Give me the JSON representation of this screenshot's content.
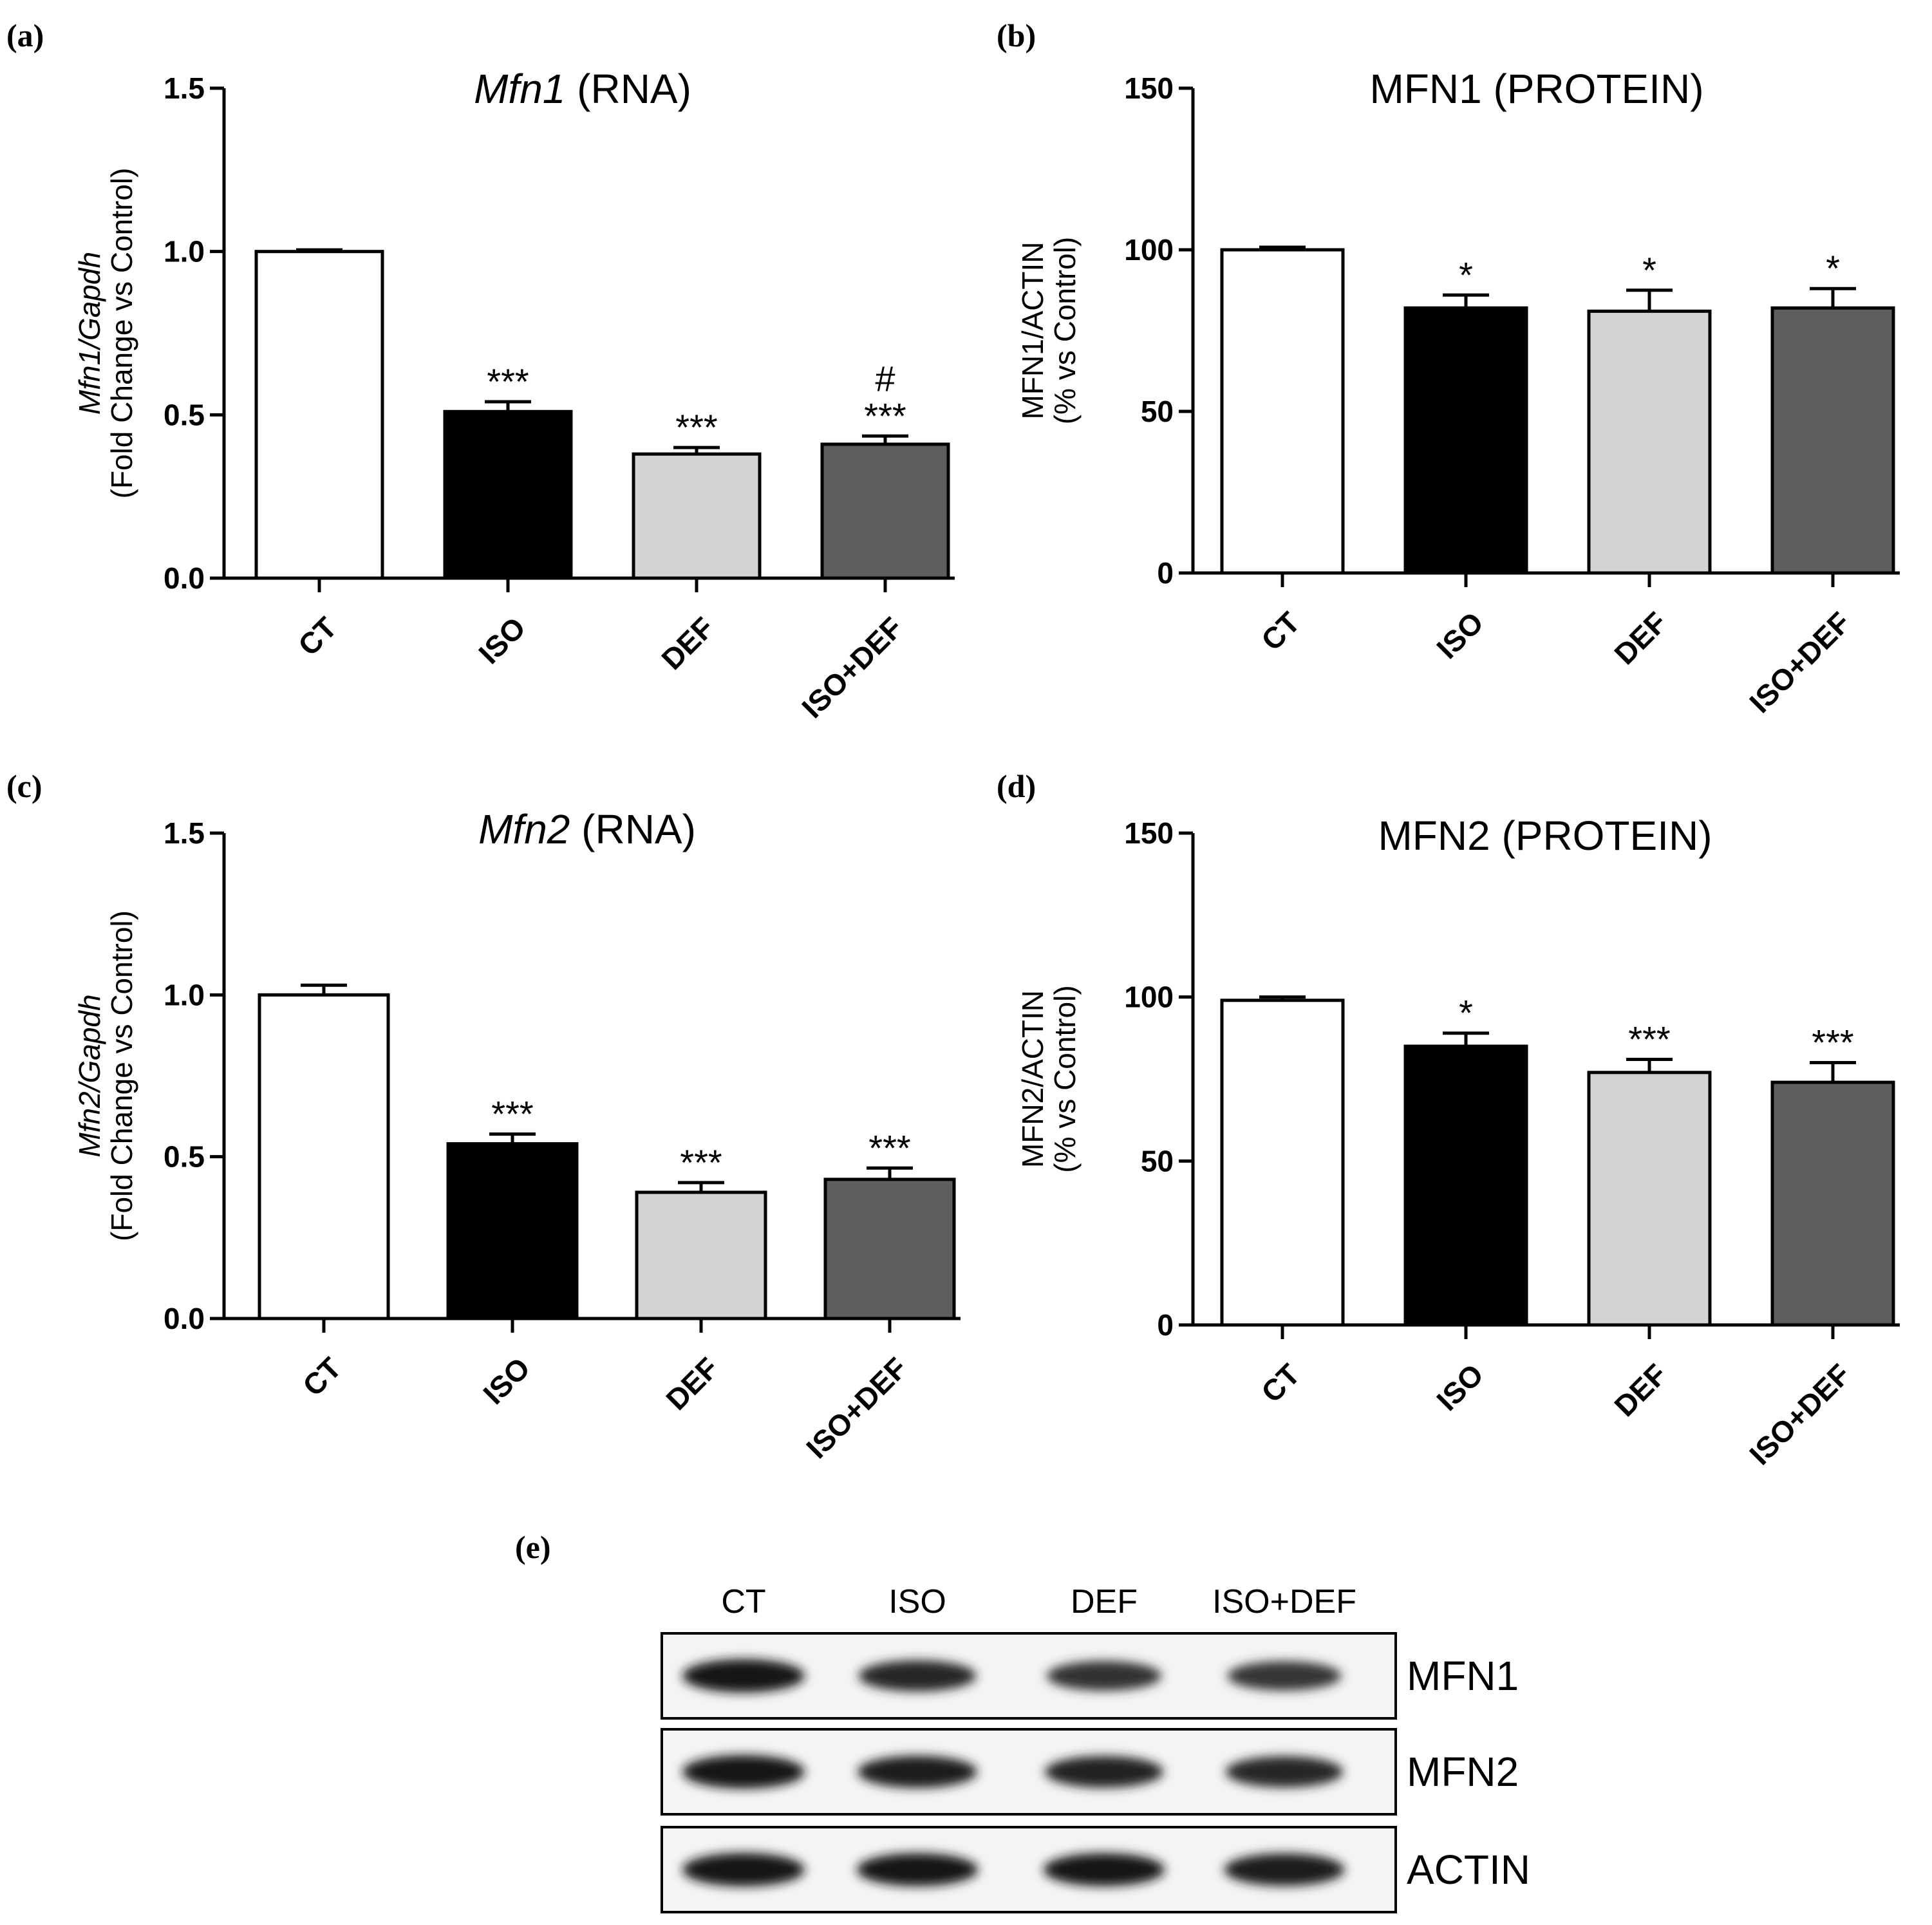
{
  "colors": {
    "CT": "#ffffff",
    "ISO": "#000000",
    "DEF": "#d3d3d3",
    "ISO+DEF": "#5e5e5e"
  },
  "chart_data": [
    {
      "id": "a",
      "type": "bar",
      "panel": "(a)",
      "title_italic": "Mfn1",
      "title_rest": " (RNA)",
      "ylabel_italic": "Mfn1/Gapdh",
      "ylabel_line2": "(Fold Change vs Control)",
      "categories": [
        "CT",
        "ISO",
        "DEF",
        "ISO+DEF"
      ],
      "values": [
        1.0,
        0.51,
        0.38,
        0.41
      ],
      "errors": [
        0.005,
        0.03,
        0.02,
        0.025
      ],
      "significance": [
        "",
        "***",
        "***",
        "***"
      ],
      "significance_extra": [
        "",
        "",
        "",
        "#"
      ],
      "ylim": [
        0,
        1.5
      ],
      "yticks": [
        0.0,
        0.5,
        1.0,
        1.5
      ],
      "ytick_labels": [
        "0.0",
        "0.5",
        "1.0",
        "1.5"
      ]
    },
    {
      "id": "b",
      "type": "bar",
      "panel": "(b)",
      "title_italic": "",
      "title_rest": "MFN1 (PROTEIN)",
      "ylabel_italic": "",
      "ylabel_line1": "MFN1/ACTIN",
      "ylabel_line2": "(% vs Control)",
      "categories": [
        "CT",
        "ISO",
        "DEF",
        "ISO+DEF"
      ],
      "values": [
        100,
        82,
        81,
        82
      ],
      "errors": [
        0.8,
        4,
        6.5,
        6
      ],
      "significance": [
        "",
        "*",
        "*",
        "*"
      ],
      "significance_extra": [
        "",
        "",
        "",
        ""
      ],
      "ylim": [
        0,
        150
      ],
      "yticks": [
        0,
        50,
        100,
        150
      ],
      "ytick_labels": [
        "0",
        "50",
        "100",
        "150"
      ]
    },
    {
      "id": "c",
      "type": "bar",
      "panel": "(c)",
      "title_italic": "Mfn2",
      "title_rest": " (RNA)",
      "ylabel_italic": "Mfn2/Gapdh",
      "ylabel_line2": "(Fold Change vs Control)",
      "categories": [
        "CT",
        "ISO",
        "DEF",
        "ISO+DEF"
      ],
      "values": [
        1.0,
        0.54,
        0.39,
        0.43
      ],
      "errors": [
        0.03,
        0.03,
        0.03,
        0.035
      ],
      "significance": [
        "",
        "***",
        "***",
        "***"
      ],
      "significance_extra": [
        "",
        "",
        "",
        ""
      ],
      "ylim": [
        0,
        1.5
      ],
      "yticks": [
        0.0,
        0.5,
        1.0,
        1.5
      ],
      "ytick_labels": [
        "0.0",
        "0.5",
        "1.0",
        "1.5"
      ]
    },
    {
      "id": "d",
      "type": "bar",
      "panel": "(d)",
      "title_italic": "",
      "title_rest": "MFN2 (PROTEIN)",
      "ylabel_italic": "",
      "ylabel_line1": "MFN2/ACTIN",
      "ylabel_line2": "(% vs Control)",
      "categories": [
        "CT",
        "ISO",
        "DEF",
        "ISO+DEF"
      ],
      "values": [
        99,
        85,
        77,
        74
      ],
      "errors": [
        1,
        4,
        4,
        6
      ],
      "significance": [
        "",
        "*",
        "***",
        "***"
      ],
      "significance_extra": [
        "",
        "",
        "",
        ""
      ],
      "ylim": [
        0,
        150
      ],
      "yticks": [
        0,
        50,
        100,
        150
      ],
      "ytick_labels": [
        "0",
        "50",
        "100",
        "150"
      ]
    }
  ],
  "blot": {
    "panel": "(e)",
    "lanes": [
      "CT",
      "ISO",
      "DEF",
      "ISO+DEF"
    ],
    "rows": [
      {
        "label": "MFN1",
        "intensity": [
          1.0,
          0.75,
          0.6,
          0.55
        ]
      },
      {
        "label": "MFN2",
        "intensity": [
          1.0,
          0.85,
          0.8,
          0.75
        ]
      },
      {
        "label": "ACTIN",
        "intensity": [
          1.0,
          0.95,
          0.95,
          0.9
        ]
      }
    ]
  }
}
